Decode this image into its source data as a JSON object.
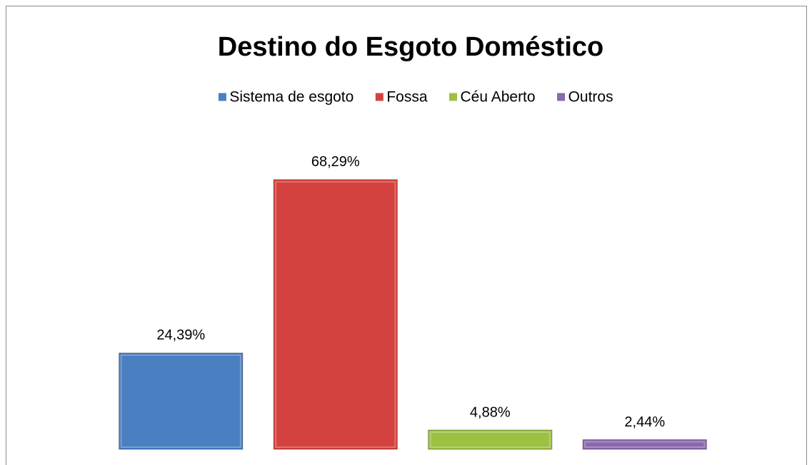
{
  "chart_data": {
    "type": "bar",
    "title": "Destino do Esgoto Doméstico",
    "categories": [
      null
    ],
    "series": [
      {
        "name": "Sistema de esgoto",
        "color": "#4a7fc1",
        "values": [
          24.39
        ],
        "value_labels": [
          "24,39%"
        ]
      },
      {
        "name": "Fossa",
        "color": "#d4423f",
        "values": [
          68.29
        ],
        "value_labels": [
          "68,29%"
        ]
      },
      {
        "name": "Céu Aberto",
        "color": "#9cc142",
        "values": [
          4.88
        ],
        "value_labels": [
          "4,88%"
        ]
      },
      {
        "name": "Outros",
        "color": "#8a68b0",
        "values": [
          2.44
        ],
        "value_labels": [
          "2,44%"
        ]
      }
    ],
    "ylim": [
      0,
      80
    ],
    "legend": "top"
  }
}
